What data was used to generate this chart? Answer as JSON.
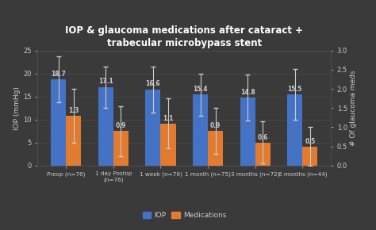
{
  "title": "IOP & glaucoma medications after cataract +\ntrabecular microbypass stent",
  "categories": [
    "Preop (n=76)",
    "1 day Postop\n(n=76)",
    "1 week (n=76)",
    "1 month (n=75)",
    "3 months (n=72)",
    "6 months (n=44)"
  ],
  "iop_values": [
    18.7,
    17.1,
    16.6,
    15.4,
    14.8,
    15.5
  ],
  "med_values": [
    1.3,
    0.9,
    1.1,
    0.9,
    0.6,
    0.5
  ],
  "iop_errors": [
    5.0,
    4.5,
    5.0,
    4.5,
    5.0,
    5.5
  ],
  "med_errors": [
    0.7,
    0.65,
    0.65,
    0.6,
    0.55,
    0.5
  ],
  "iop_color": "#4472C4",
  "med_color": "#E07B30",
  "background_color": "#3A3A3A",
  "text_color": "#CCCCCC",
  "grid_color": "#505050",
  "ylabel_left": "IOP (mmHg)",
  "ylabel_right": "# Of glaucoma meds",
  "ylim_left": [
    0,
    25
  ],
  "ylim_right": [
    0,
    3
  ],
  "yticks_left": [
    0,
    5,
    10,
    15,
    20,
    25
  ],
  "yticks_right": [
    0,
    0.5,
    1,
    1.5,
    2,
    2.5,
    3
  ],
  "legend_labels": [
    "IOP",
    "Medications"
  ],
  "bar_width": 0.32
}
